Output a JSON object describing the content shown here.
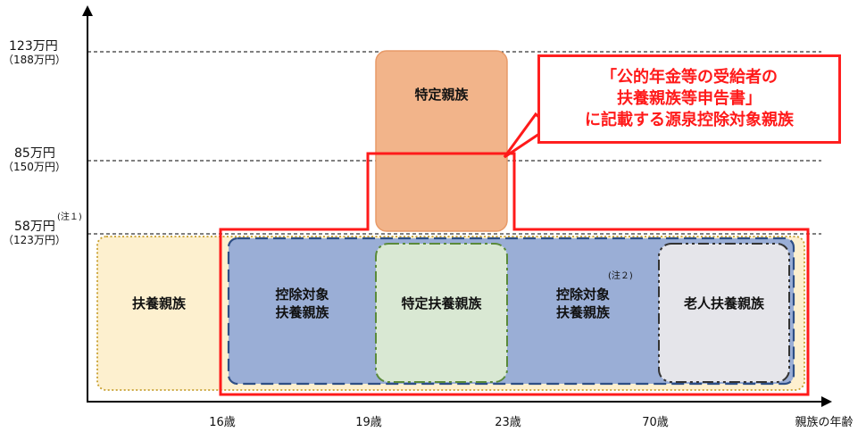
{
  "y_axis": {
    "level_123": {
      "main": "123万円",
      "sub": "（188万円）"
    },
    "level_85": {
      "main": "85万円",
      "sub": "（150万円）"
    },
    "level_58": {
      "main": "58万円",
      "sub": "（123万円）",
      "note": "(注１)"
    }
  },
  "x_axis": {
    "ticks": [
      "16歳",
      "19歳",
      "23歳",
      "70歳"
    ],
    "label": "親族の年齢"
  },
  "boxes": {
    "tokutei_shinzoku": "特定親族",
    "fuyo_shinzoku": "扶養親族",
    "kojo_taisho_left": [
      "控除対象",
      "扶養親族"
    ],
    "tokutei_fuyo": "特定扶養親族",
    "kojo_taisho_right": [
      "控除対象",
      "扶養親族"
    ],
    "kojo_taisho_right_note": "(注２)",
    "rojin_fuyo": "老人扶養親族"
  },
  "callout": {
    "lines": [
      "「公的年金等の受給者の",
      "扶養親族等申告書」",
      "に記載する源泉控除対象親族"
    ]
  },
  "colors": {
    "axis": "#000000",
    "red": "#ff1a1a",
    "orange_fill": "#f2b48a",
    "orange_stroke": "#e89a68",
    "yellow_fill": "#fdf0cf",
    "yellow_stroke": "#c8a030",
    "blue_fill": "#9aaed6",
    "blue_stroke": "#2e4f86",
    "green_fill": "#d9e8d3",
    "green_stroke": "#5a8a3a",
    "gray_fill": "#e5e5ea",
    "gray_stroke": "#333333"
  }
}
